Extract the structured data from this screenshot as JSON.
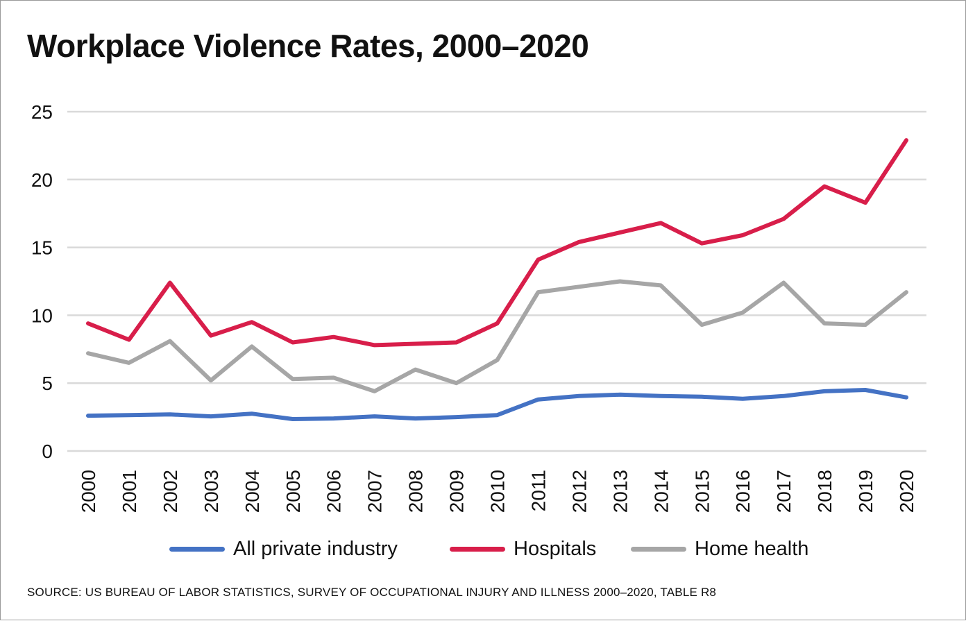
{
  "chart_data": {
    "type": "line",
    "title": "Workplace Violence Rates, 2000–2020",
    "categories": [
      "2000",
      "2001",
      "2002",
      "2003",
      "2004",
      "2005",
      "2006",
      "2007",
      "2008",
      "2009",
      "2010",
      "2011",
      "2012",
      "2013",
      "2014",
      "2015",
      "2016",
      "2017",
      "2018",
      "2019",
      "2020"
    ],
    "ylim": [
      0,
      25
    ],
    "yticks": [
      "0",
      "5",
      "10",
      "15",
      "20",
      "25"
    ],
    "grid": true,
    "legend_position": "bottom",
    "xlabel": "",
    "ylabel": "",
    "series": [
      {
        "name": "All private industry",
        "color": "#4472c4",
        "values": [
          2.6,
          2.65,
          2.7,
          2.55,
          2.75,
          2.35,
          2.4,
          2.55,
          2.4,
          2.5,
          2.65,
          3.8,
          4.05,
          4.15,
          4.05,
          4.0,
          3.85,
          4.05,
          4.4,
          4.5,
          3.95
        ]
      },
      {
        "name": "Hospitals",
        "color": "#d81e4a",
        "values": [
          9.4,
          8.2,
          12.4,
          8.5,
          9.5,
          8.0,
          8.4,
          7.8,
          7.9,
          8.0,
          9.4,
          14.1,
          15.4,
          16.1,
          16.8,
          15.3,
          15.9,
          17.1,
          19.5,
          18.3,
          22.9
        ]
      },
      {
        "name": "Home health",
        "color": "#a6a6a6",
        "values": [
          7.2,
          6.5,
          8.1,
          5.2,
          7.7,
          5.3,
          5.4,
          4.4,
          6.0,
          5.0,
          6.7,
          11.7,
          12.1,
          12.5,
          12.2,
          9.3,
          10.2,
          12.4,
          9.4,
          9.3,
          11.7
        ]
      }
    ]
  },
  "source": "SOURCE: US BUREAU OF LABOR STATISTICS, SURVEY OF OCCUPATIONAL INJURY AND ILLNESS 2000–2020, TABLE R8"
}
